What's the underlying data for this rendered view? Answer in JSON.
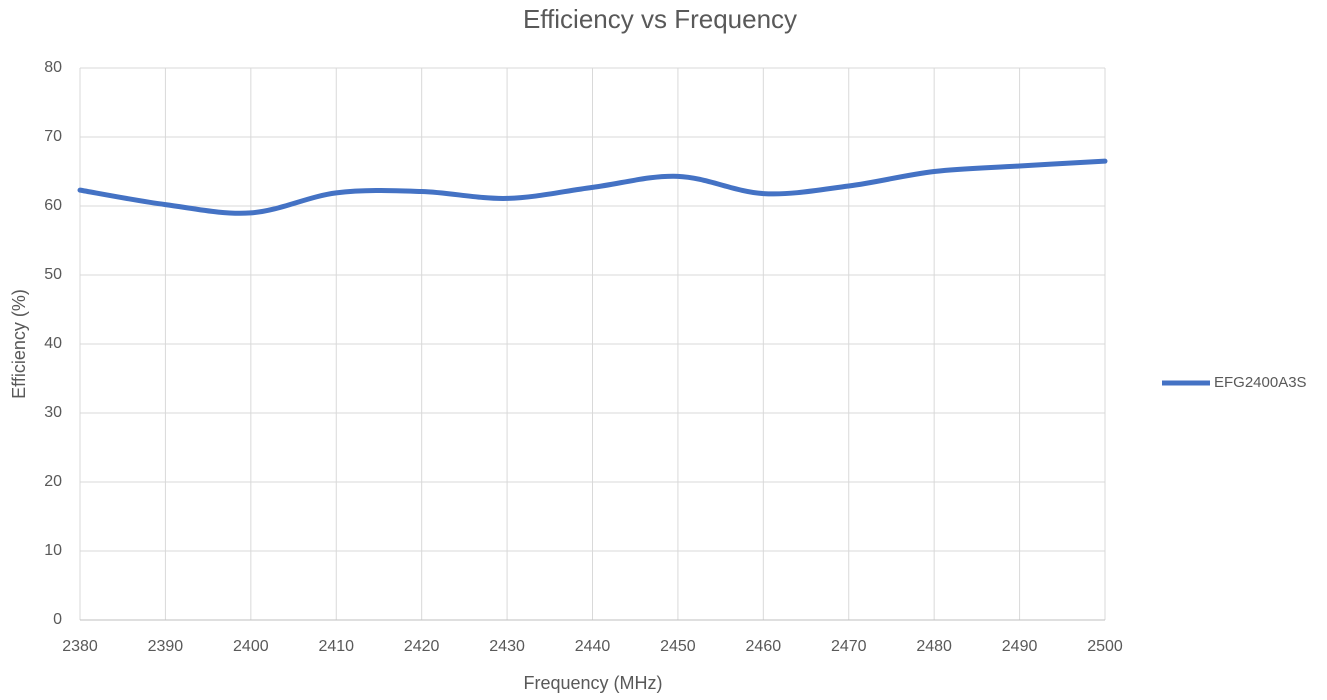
{
  "chart_data": {
    "type": "line",
    "title": "Efficiency vs Frequency",
    "x_label": "Frequency (MHz)",
    "y_label": "Efficiency (%)",
    "x": [
      2380,
      2390,
      2400,
      2410,
      2420,
      2430,
      2440,
      2450,
      2460,
      2470,
      2480,
      2490,
      2500
    ],
    "series": [
      {
        "name": "EFG2400A3S",
        "color": "#4472c4",
        "values": [
          62.3,
          60.2,
          59.0,
          61.9,
          62.1,
          61.1,
          62.7,
          64.3,
          61.8,
          62.9,
          65.0,
          65.8,
          66.5
        ]
      }
    ],
    "xlim": [
      2380,
      2500
    ],
    "xticks": [
      2380,
      2390,
      2400,
      2410,
      2420,
      2430,
      2440,
      2450,
      2460,
      2470,
      2480,
      2490,
      2500
    ],
    "ylim": [
      0,
      80
    ],
    "yticks": [
      0,
      10,
      20,
      30,
      40,
      50,
      60,
      70,
      80
    ],
    "grid": true,
    "legend": "right",
    "smooth": true
  }
}
